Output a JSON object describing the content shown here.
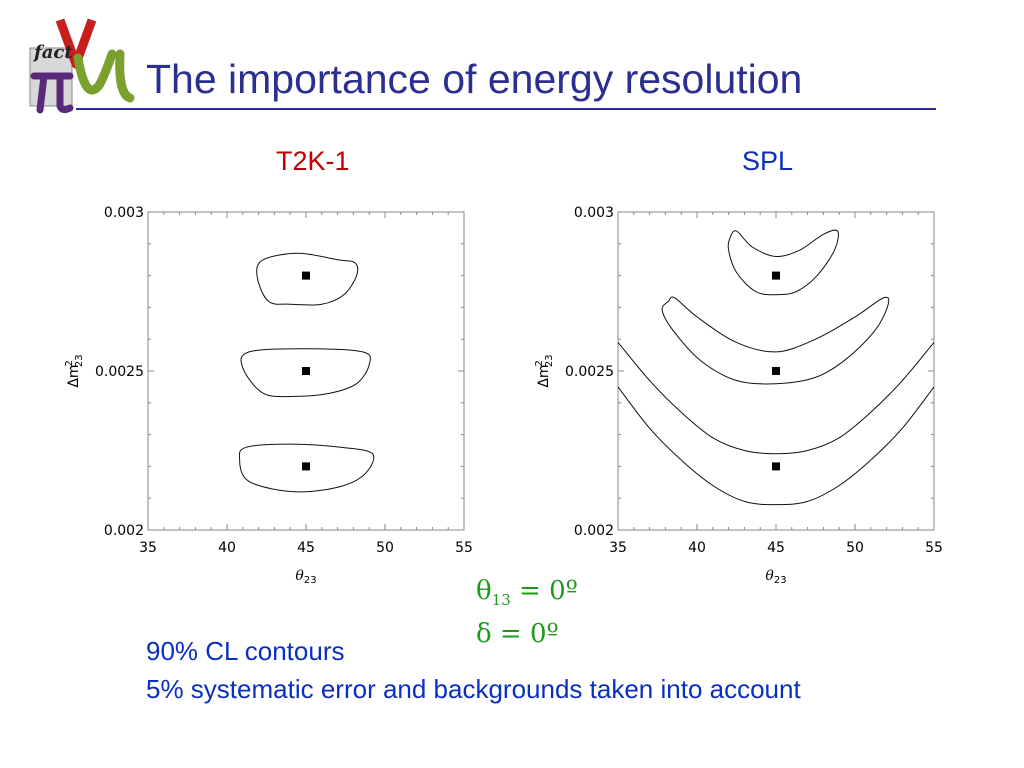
{
  "slide": {
    "title": "The importance of energy resolution",
    "logo": {
      "text": "fact",
      "icon": "nufact-logo-icon"
    },
    "params": {
      "theta_symbol": "θ",
      "theta_sub": "13",
      "theta_rest": " = 0º",
      "delta": "δ = 0º"
    },
    "notes": [
      "90% CL contours",
      "5% systematic error and backgrounds taken into account"
    ],
    "colors": {
      "title": "#2b2f8f",
      "left_plot_title": "#c00000",
      "right_plot_title": "#0a2fbf",
      "params": "#1a9c1a",
      "notes": "#0a2fbf"
    }
  },
  "chart_data": [
    {
      "id": "t2k",
      "type": "line",
      "title": "T2K-1",
      "xlabel_symbol": "θ",
      "xlabel_sub": "23",
      "ylabel_prefix": "Δm",
      "ylabel_sup": "2",
      "ylabel_sub": "23",
      "xlim": [
        35,
        55
      ],
      "ylim": [
        0.002,
        0.003
      ],
      "xticks": [
        35,
        40,
        45,
        50,
        55
      ],
      "yticks": [
        0.002,
        0.0025,
        0.003
      ],
      "ytick_labels": [
        "0.002",
        "0.0025",
        "0.003"
      ],
      "grid": false,
      "true_points": [
        [
          45,
          0.0028
        ],
        [
          45,
          0.0025
        ],
        [
          45,
          0.0022
        ]
      ],
      "contours": [
        [
          [
            41.9,
            0.0028
          ],
          [
            42.3,
            0.00285
          ],
          [
            44.5,
            0.00287
          ],
          [
            47.0,
            0.00285
          ],
          [
            48.1,
            0.00284
          ],
          [
            48.2,
            0.0028
          ],
          [
            47.4,
            0.00274
          ],
          [
            46.0,
            0.00271
          ],
          [
            44.0,
            0.00271
          ],
          [
            42.6,
            0.00272
          ],
          [
            41.9,
            0.0028
          ]
        ],
        [
          [
            41.0,
            0.00251
          ],
          [
            41.4,
            0.00256
          ],
          [
            45.0,
            0.00257
          ],
          [
            48.6,
            0.00256
          ],
          [
            49.0,
            0.00252
          ],
          [
            48.2,
            0.00246
          ],
          [
            46.5,
            0.00243
          ],
          [
            44.3,
            0.00242
          ],
          [
            42.3,
            0.00243
          ],
          [
            41.0,
            0.00251
          ]
        ],
        [
          [
            40.8,
            0.00222
          ],
          [
            41.2,
            0.00226
          ],
          [
            44.0,
            0.00227
          ],
          [
            47.2,
            0.00226
          ],
          [
            49.2,
            0.00224
          ],
          [
            48.8,
            0.00218
          ],
          [
            47.4,
            0.00214
          ],
          [
            45.0,
            0.00212
          ],
          [
            42.8,
            0.00213
          ],
          [
            41.2,
            0.00216
          ],
          [
            40.8,
            0.00222
          ]
        ]
      ]
    },
    {
      "id": "spl",
      "type": "line",
      "title": "SPL",
      "xlabel_symbol": "θ",
      "xlabel_sub": "23",
      "ylabel_prefix": "Δm",
      "ylabel_sup": "2",
      "ylabel_sub": "23",
      "xlim": [
        35,
        55
      ],
      "ylim": [
        0.002,
        0.003
      ],
      "xticks": [
        35,
        40,
        45,
        50,
        55
      ],
      "yticks": [
        0.002,
        0.0025,
        0.003
      ],
      "ytick_labels": [
        "0.002",
        "0.0025",
        "0.003"
      ],
      "grid": false,
      "true_points": [
        [
          45,
          0.0028
        ],
        [
          45,
          0.0025
        ],
        [
          45,
          0.0022
        ]
      ],
      "contours": [
        [
          [
            42.1,
            0.00292
          ],
          [
            42.5,
            0.00294
          ],
          [
            43.5,
            0.00289
          ],
          [
            45.0,
            0.00286
          ],
          [
            46.5,
            0.00288
          ],
          [
            48.0,
            0.00293
          ],
          [
            48.9,
            0.00294
          ],
          [
            48.7,
            0.00288
          ],
          [
            47.6,
            0.0028
          ],
          [
            46.3,
            0.00275
          ],
          [
            45.0,
            0.00274
          ],
          [
            43.7,
            0.00275
          ],
          [
            42.5,
            0.00281
          ],
          [
            42.0,
            0.00288
          ],
          [
            42.1,
            0.00292
          ]
        ],
        [
          [
            38.2,
            0.00272
          ],
          [
            38.6,
            0.00273
          ],
          [
            40.0,
            0.00267
          ],
          [
            42.5,
            0.00259
          ],
          [
            45.0,
            0.00256
          ],
          [
            47.5,
            0.0026
          ],
          [
            50.0,
            0.00267
          ],
          [
            51.8,
            0.00273
          ],
          [
            52.1,
            0.00271
          ],
          [
            51.3,
            0.00263
          ],
          [
            49.5,
            0.00254
          ],
          [
            47.5,
            0.00248
          ],
          [
            45.0,
            0.00246
          ],
          [
            42.5,
            0.00247
          ],
          [
            40.3,
            0.00253
          ],
          [
            38.6,
            0.00262
          ],
          [
            37.8,
            0.00269
          ],
          [
            38.2,
            0.00272
          ]
        ]
      ],
      "open_curves": [
        [
          [
            35.0,
            0.00259
          ],
          [
            37.0,
            0.00247
          ],
          [
            39.0,
            0.00237
          ],
          [
            41.0,
            0.00229
          ],
          [
            43.0,
            0.00225
          ],
          [
            45.0,
            0.00224
          ],
          [
            47.0,
            0.00225
          ],
          [
            49.0,
            0.00229
          ],
          [
            51.0,
            0.00237
          ],
          [
            53.0,
            0.00247
          ],
          [
            55.0,
            0.00259
          ]
        ],
        [
          [
            35.0,
            0.00245
          ],
          [
            37.0,
            0.00232
          ],
          [
            39.0,
            0.00222
          ],
          [
            41.0,
            0.00214
          ],
          [
            43.0,
            0.00209
          ],
          [
            45.0,
            0.00208
          ],
          [
            47.0,
            0.00209
          ],
          [
            49.0,
            0.00214
          ],
          [
            51.0,
            0.00222
          ],
          [
            53.0,
            0.00232
          ],
          [
            55.0,
            0.00245
          ]
        ]
      ]
    }
  ]
}
